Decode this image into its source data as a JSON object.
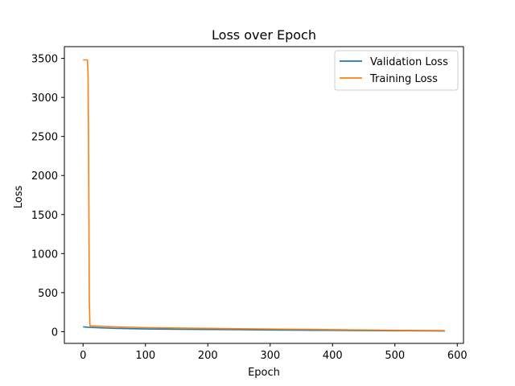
{
  "chart_data": {
    "type": "line",
    "title": "Loss over Epoch",
    "xlabel": "Epoch",
    "ylabel": "Loss",
    "xlim": [
      -30,
      610
    ],
    "ylim": [
      -150,
      3650
    ],
    "xticks": [
      0,
      100,
      200,
      300,
      400,
      500,
      600
    ],
    "yticks": [
      0,
      500,
      1000,
      1500,
      2000,
      2500,
      3000,
      3500
    ],
    "grid": false,
    "legend_position": "top-right",
    "series": [
      {
        "name": "Validation Loss",
        "color": "#1f77b4",
        "x": [
          0,
          10,
          50,
          100,
          150,
          200,
          250,
          300,
          350,
          400,
          450,
          500,
          550,
          580
        ],
        "y": [
          62,
          55,
          42,
          35,
          31,
          28,
          25,
          22,
          19,
          16,
          14,
          12,
          10,
          9
        ]
      },
      {
        "name": "Training Loss",
        "color": "#ff7f0e",
        "x": [
          0,
          7,
          8,
          9,
          10,
          11,
          50,
          100,
          150,
          200,
          250,
          300,
          350,
          400,
          450,
          500,
          550,
          580
        ],
        "y": [
          3480,
          3480,
          3300,
          2000,
          400,
          75,
          62,
          52,
          46,
          42,
          38,
          34,
          30,
          26,
          22,
          18,
          15,
          14
        ]
      }
    ]
  }
}
